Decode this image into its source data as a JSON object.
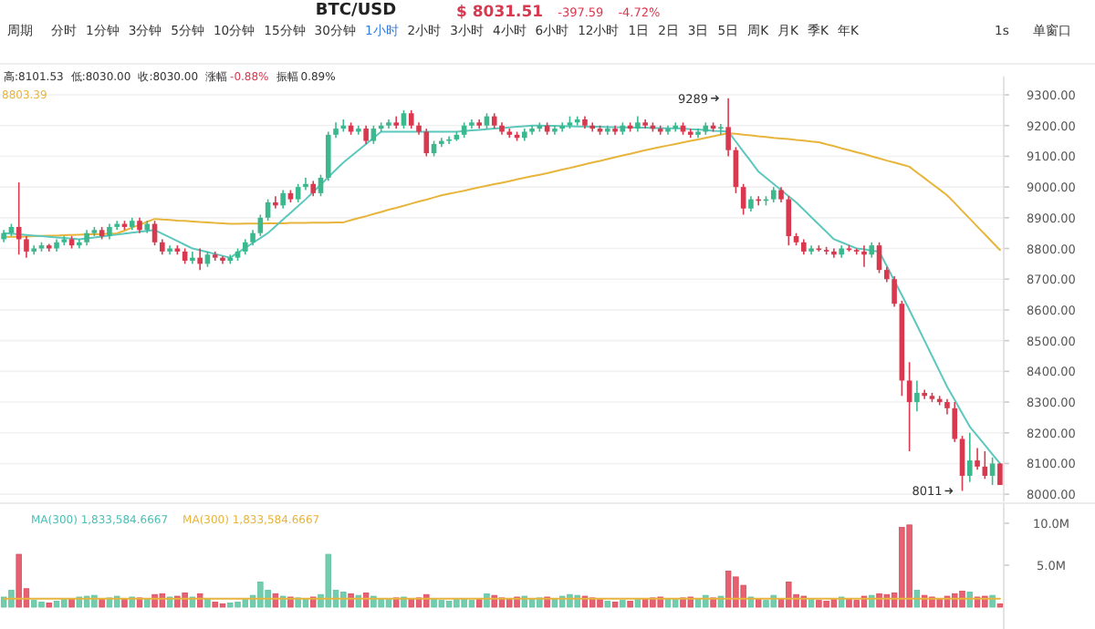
{
  "chart_data": [
    {
      "type": "candlestick",
      "title": "BTC/USD",
      "annotations": [
        "周期",
        "分时",
        "1分钟",
        "3分钟",
        "5分钟",
        "10分钟",
        "15分钟",
        "30分钟",
        "1小时",
        "2小时",
        "3小时",
        "4小时",
        "6小时",
        "12小时",
        "1日",
        "2日",
        "3日",
        "5日",
        "周K",
        "月K",
        "季K",
        "年K",
        "1s",
        "单窗口",
        "$ 8031.51",
        "-397.59",
        "-4.72%",
        "高:8101.53",
        "低:8030.00",
        "收:8030.00",
        "涨幅",
        "-0.88%",
        "振幅",
        "0.89%",
        "8803.39",
        "9289",
        "8011"
      ],
      "categories": [
        null,
        null,
        null,
        null,
        null,
        null,
        null,
        null,
        null,
        null,
        null,
        null,
        null,
        null,
        null,
        null,
        null,
        null,
        null,
        null,
        null,
        null,
        null,
        null,
        null,
        null,
        null,
        null,
        null,
        null,
        null,
        null,
        null,
        null,
        null,
        null,
        null,
        null,
        null,
        null,
        null,
        null,
        null,
        null,
        null,
        null,
        null,
        null,
        null,
        null,
        null,
        null,
        null,
        null,
        null,
        null,
        null,
        null,
        null,
        null,
        null,
        null,
        null,
        null,
        null,
        null,
        null,
        null,
        null,
        null,
        null,
        null,
        null,
        null,
        null,
        null,
        null,
        null,
        null,
        null,
        null,
        null,
        null,
        null,
        null,
        null,
        null,
        null,
        null,
        null,
        null,
        null,
        null,
        null,
        null,
        null,
        null,
        null,
        null,
        null,
        null,
        null,
        null,
        null,
        null,
        null,
        null,
        null,
        null,
        null,
        null,
        null,
        null,
        null,
        null,
        null,
        null,
        null,
        null,
        null,
        null,
        null,
        null,
        null,
        null,
        null,
        null,
        null,
        null,
        null,
        null,
        null,
        null
      ],
      "ohlc": [
        [
          8830,
          8860,
          8820,
          8850
        ],
        [
          8850,
          8880,
          8840,
          8870
        ],
        [
          8870,
          9015,
          8780,
          8830
        ],
        [
          8830,
          8840,
          8770,
          8790
        ],
        [
          8790,
          8810,
          8780,
          8800
        ],
        [
          8800,
          8820,
          8790,
          8810
        ],
        [
          8810,
          8815,
          8790,
          8800
        ],
        [
          8800,
          8830,
          8790,
          8820
        ],
        [
          8820,
          8840,
          8810,
          8830
        ],
        [
          8830,
          8840,
          8800,
          8810
        ],
        [
          8810,
          8830,
          8800,
          8820
        ],
        [
          8820,
          8860,
          8810,
          8850
        ],
        [
          8850,
          8870,
          8840,
          8860
        ],
        [
          8860,
          8870,
          8830,
          8840
        ],
        [
          8840,
          8880,
          8830,
          8870
        ],
        [
          8870,
          8890,
          8860,
          8880
        ],
        [
          8880,
          8890,
          8860,
          8870
        ],
        [
          8870,
          8900,
          8860,
          8890
        ],
        [
          8890,
          8900,
          8850,
          8860
        ],
        [
          8860,
          8890,
          8850,
          8880
        ],
        [
          8880,
          8890,
          8810,
          8820
        ],
        [
          8820,
          8830,
          8780,
          8790
        ],
        [
          8790,
          8810,
          8780,
          8800
        ],
        [
          8800,
          8810,
          8780,
          8790
        ],
        [
          8790,
          8800,
          8750,
          8760
        ],
        [
          8760,
          8790,
          8750,
          8770
        ],
        [
          8770,
          8800,
          8730,
          8750
        ],
        [
          8750,
          8790,
          8740,
          8780
        ],
        [
          8780,
          8790,
          8760,
          8770
        ],
        [
          8770,
          8775,
          8750,
          8760
        ],
        [
          8760,
          8780,
          8750,
          8770
        ],
        [
          8770,
          8800,
          8760,
          8790
        ],
        [
          8790,
          8830,
          8780,
          8820
        ],
        [
          8820,
          8860,
          8810,
          8850
        ],
        [
          8850,
          8910,
          8840,
          8900
        ],
        [
          8900,
          8960,
          8890,
          8950
        ],
        [
          8950,
          8970,
          8930,
          8940
        ],
        [
          8940,
          8990,
          8930,
          8980
        ],
        [
          8980,
          8990,
          8950,
          8960
        ],
        [
          8960,
          9010,
          8950,
          9000
        ],
        [
          9000,
          9030,
          8990,
          9010
        ],
        [
          9010,
          9020,
          8970,
          8980
        ],
        [
          8980,
          9040,
          8970,
          9030
        ],
        [
          9030,
          9180,
          9020,
          9170
        ],
        [
          9170,
          9210,
          9160,
          9190
        ],
        [
          9190,
          9220,
          9180,
          9200
        ],
        [
          9200,
          9210,
          9170,
          9180
        ],
        [
          9180,
          9200,
          9170,
          9190
        ],
        [
          9190,
          9200,
          9140,
          9150
        ],
        [
          9150,
          9200,
          9140,
          9190
        ],
        [
          9190,
          9210,
          9180,
          9200
        ],
        [
          9200,
          9220,
          9190,
          9210
        ],
        [
          9210,
          9230,
          9190,
          9200
        ],
        [
          9200,
          9250,
          9190,
          9240
        ],
        [
          9240,
          9250,
          9190,
          9200
        ],
        [
          9200,
          9210,
          9170,
          9180
        ],
        [
          9180,
          9190,
          9100,
          9110
        ],
        [
          9110,
          9150,
          9100,
          9140
        ],
        [
          9140,
          9160,
          9130,
          9150
        ],
        [
          9150,
          9165,
          9140,
          9155
        ],
        [
          9155,
          9180,
          9150,
          9170
        ],
        [
          9170,
          9210,
          9160,
          9200
        ],
        [
          9200,
          9220,
          9190,
          9210
        ],
        [
          9210,
          9220,
          9190,
          9200
        ],
        [
          9200,
          9240,
          9190,
          9230
        ],
        [
          9230,
          9240,
          9190,
          9200
        ],
        [
          9200,
          9210,
          9170,
          9180
        ],
        [
          9180,
          9190,
          9160,
          9170
        ],
        [
          9170,
          9180,
          9150,
          9160
        ],
        [
          9160,
          9190,
          9150,
          9180
        ],
        [
          9180,
          9200,
          9170,
          9190
        ],
        [
          9190,
          9210,
          9180,
          9200
        ],
        [
          9200,
          9210,
          9170,
          9180
        ],
        [
          9180,
          9200,
          9170,
          9190
        ],
        [
          9190,
          9210,
          9180,
          9200
        ],
        [
          9200,
          9230,
          9190,
          9210
        ],
        [
          9210,
          9230,
          9200,
          9220
        ],
        [
          9220,
          9230,
          9190,
          9200
        ],
        [
          9200,
          9210,
          9180,
          9190
        ],
        [
          9190,
          9200,
          9170,
          9180
        ],
        [
          9180,
          9200,
          9170,
          9190
        ],
        [
          9190,
          9200,
          9170,
          9180
        ],
        [
          9180,
          9210,
          9170,
          9200
        ],
        [
          9200,
          9210,
          9180,
          9190
        ],
        [
          9190,
          9230,
          9180,
          9210
        ],
        [
          9210,
          9220,
          9190,
          9200
        ],
        [
          9200,
          9210,
          9180,
          9190
        ],
        [
          9190,
          9200,
          9170,
          9180
        ],
        [
          9180,
          9200,
          9170,
          9190
        ],
        [
          9190,
          9210,
          9180,
          9200
        ],
        [
          9200,
          9210,
          9170,
          9180
        ],
        [
          9180,
          9190,
          9160,
          9170
        ],
        [
          9170,
          9190,
          9160,
          9180
        ],
        [
          9180,
          9210,
          9170,
          9200
        ],
        [
          9200,
          9210,
          9180,
          9190
        ],
        [
          9190,
          9205,
          9170,
          9195
        ],
        [
          9195,
          9289,
          9100,
          9120
        ],
        [
          9120,
          9130,
          8980,
          9000
        ],
        [
          9000,
          9010,
          8910,
          8930
        ],
        [
          8930,
          8970,
          8920,
          8960
        ],
        [
          8960,
          8970,
          8940,
          8955
        ],
        [
          8955,
          8970,
          8940,
          8960
        ],
        [
          8960,
          9000,
          8950,
          8990
        ],
        [
          8990,
          9000,
          8950,
          8960
        ],
        [
          8960,
          8970,
          8810,
          8840
        ],
        [
          8840,
          8850,
          8810,
          8820
        ],
        [
          8820,
          8830,
          8780,
          8790
        ],
        [
          8790,
          8810,
          8780,
          8800
        ],
        [
          8800,
          8810,
          8790,
          8795
        ],
        [
          8795,
          8805,
          8780,
          8790
        ],
        [
          8790,
          8800,
          8770,
          8780
        ],
        [
          8780,
          8810,
          8770,
          8800
        ],
        [
          8800,
          8810,
          8790,
          8795
        ],
        [
          8795,
          8800,
          8780,
          8790
        ],
        [
          8790,
          8810,
          8740,
          8780
        ],
        [
          8780,
          8820,
          8770,
          8810
        ],
        [
          8810,
          8820,
          8720,
          8730
        ],
        [
          8730,
          8740,
          8690,
          8700
        ],
        [
          8700,
          8710,
          8610,
          8620
        ],
        [
          8620,
          8630,
          8320,
          8370
        ],
        [
          8370,
          8430,
          8140,
          8300
        ],
        [
          8300,
          8370,
          8270,
          8330
        ],
        [
          8330,
          8340,
          8310,
          8320
        ],
        [
          8320,
          8330,
          8300,
          8310
        ],
        [
          8310,
          8320,
          8290,
          8300
        ],
        [
          8300,
          8310,
          8260,
          8280
        ],
        [
          8280,
          8300,
          8170,
          8180
        ],
        [
          8180,
          8190,
          8011,
          8060
        ],
        [
          8060,
          8200,
          8040,
          8110
        ],
        [
          8110,
          8150,
          8080,
          8090
        ],
        [
          8090,
          8140,
          8050,
          8060
        ],
        [
          8060,
          8120,
          8030,
          8100
        ],
        [
          8100,
          8101.53,
          8030,
          8030
        ]
      ],
      "series": [
        {
          "type": "line",
          "color": "#e8b53c",
          "values": [
            8837,
            8838,
            8838,
            8839,
            8840,
            8841,
            8842,
            8842,
            8843,
            8844,
            8845,
            8846,
            8846,
            8847,
            8848,
            8849,
            8858,
            8868,
            8877,
            8887,
            8896,
            8894,
            8893,
            8891,
            8890,
            8888,
            8886,
            8885,
            8883,
            8882,
            8880,
            8880,
            8881,
            8881,
            8881,
            8882,
            8882,
            8882,
            8883,
            8883,
            8883,
            8884,
            8884,
            8884,
            8885,
            8885,
            8892,
            8899,
            8905,
            8912,
            8919,
            8926,
            8932,
            8939,
            8946,
            8953,
            8959,
            8966,
            8973,
            8978,
            8983,
            8988,
            8994,
            8999,
            9004,
            9009,
            9014,
            9019,
            9025,
            9030,
            9035,
            9040,
            9045,
            9051,
            9057,
            9062,
            9068,
            9074,
            9080,
            9085,
            9091,
            9097,
            9103,
            9108,
            9114,
            9120,
            9125,
            9130,
            9135,
            9140,
            9145,
            9150,
            9155,
            9160,
            9165,
            9170,
            9175,
            9173,
            9170,
            9168,
            9165,
            9163,
            9160,
            9158,
            9156,
            9153,
            9151,
            9148,
            9146,
            9139,
            9133,
            9126,
            9120,
            9113,
            9107,
            9100,
            9093,
            9086,
            9080,
            9073,
            9066,
            9047,
            9029,
            9010,
            8992,
            8973,
            8948,
            8922,
            8897,
            8871,
            8846,
            8820,
            8795
          ]
        },
        {
          "type": "line",
          "color": "#5cc8bd",
          "values": [
            8850,
            8848,
            8846,
            8844,
            8842,
            8840,
            8838,
            8836,
            8834,
            8832,
            8830,
            8833,
            8836,
            8839,
            8842,
            8845,
            8848,
            8851,
            8854,
            8857,
            8860,
            8848,
            8836,
            8824,
            8812,
            8800,
            8794,
            8788,
            8782,
            8776,
            8770,
            8786,
            8802,
            8818,
            8834,
            8850,
            8872,
            8894,
            8916,
            8938,
            8960,
            8984,
            9008,
            9032,
            9056,
            9080,
            9100,
            9120,
            9140,
            9160,
            9180,
            9180,
            9180,
            9180,
            9180,
            9180,
            9180,
            9180,
            9180,
            9180,
            9180,
            9182,
            9184,
            9186,
            9188,
            9190,
            9192,
            9194,
            9196,
            9198,
            9200,
            9200,
            9199,
            9199,
            9198,
            9198,
            9197,
            9197,
            9196,
            9196,
            9195,
            9195,
            9194,
            9194,
            9193,
            9193,
            9192,
            9192,
            9191,
            9191,
            9190,
            9188,
            9187,
            9185,
            9183,
            9182,
            9180,
            9148,
            9115,
            9083,
            9050,
            9030,
            9010,
            8990,
            8970,
            8950,
            8926,
            8902,
            8878,
            8854,
            8830,
            8820,
            8810,
            8800,
            8797,
            8793,
            8790,
            8743,
            8695,
            8648,
            8600,
            8550,
            8500,
            8450,
            8400,
            8350,
            8307,
            8263,
            8220,
            8190,
            8160,
            8130,
            8100
          ]
        }
      ],
      "ylim": [
        7975,
        9360
      ],
      "yticks": [
        {
          "value": 8000,
          "label": "8000.00"
        },
        {
          "value": 8100,
          "label": "8100.00"
        },
        {
          "value": 8200,
          "label": "8200.00"
        },
        {
          "value": 8300,
          "label": "8300.00"
        },
        {
          "value": 8400,
          "label": "8400.00"
        },
        {
          "value": 8500,
          "label": "8500.00"
        },
        {
          "value": 8600,
          "label": "8600.00"
        },
        {
          "value": 8700,
          "label": "8700.00"
        },
        {
          "value": 8800,
          "label": "8800.00"
        },
        {
          "value": 8900,
          "label": "8900.00"
        },
        {
          "value": 9000,
          "label": "9000.00"
        },
        {
          "value": 9100,
          "label": "9100.00"
        },
        {
          "value": 9200,
          "label": "9200.00"
        },
        {
          "value": 9300,
          "label": "9300.00"
        }
      ],
      "grid": "y"
    },
    {
      "type": "bar",
      "annotations": [
        "MA(300) 1,833,584.6667",
        "MA(300) 1,833,584.6667"
      ],
      "categories": [
        null,
        null,
        null,
        null,
        null,
        null,
        null,
        null,
        null,
        null,
        null,
        null,
        null,
        null,
        null,
        null,
        null,
        null,
        null,
        null,
        null,
        null,
        null,
        null,
        null,
        null,
        null,
        null,
        null,
        null,
        null,
        null,
        null,
        null,
        null,
        null,
        null,
        null,
        null,
        null,
        null,
        null,
        null,
        null,
        null,
        null,
        null,
        null,
        null,
        null,
        null,
        null,
        null,
        null,
        null,
        null,
        null,
        null,
        null,
        null,
        null,
        null,
        null,
        null,
        null,
        null,
        null,
        null,
        null,
        null,
        null,
        null,
        null,
        null,
        null,
        null,
        null,
        null,
        null,
        null,
        null,
        null,
        null,
        null,
        null,
        null,
        null,
        null,
        null,
        null,
        null,
        null,
        null,
        null,
        null,
        null,
        null,
        null,
        null,
        null,
        null,
        null,
        null,
        null,
        null,
        null,
        null,
        null,
        null,
        null,
        null,
        null,
        null,
        null,
        null,
        null,
        null,
        null,
        null,
        null,
        null,
        null,
        null,
        null,
        null,
        null,
        null,
        null,
        null,
        null,
        null,
        null,
        null
      ],
      "series": [
        {
          "type": "bar",
          "values": [
            1.2,
            2.0,
            6.3,
            2.2,
            0.8,
            0.6,
            0.5,
            0.7,
            0.9,
            1.0,
            1.2,
            1.3,
            1.4,
            1.0,
            1.1,
            1.3,
            1.0,
            1.2,
            1.1,
            1.0,
            1.5,
            1.6,
            1.2,
            1.3,
            1.7,
            1.2,
            1.6,
            1.0,
            0.6,
            0.4,
            0.5,
            0.6,
            0.9,
            1.4,
            3.0,
            2.0,
            1.6,
            1.3,
            1.2,
            1.1,
            1.0,
            1.2,
            1.5,
            6.3,
            2.0,
            1.8,
            1.6,
            1.4,
            1.7,
            1.3,
            1.0,
            0.9,
            1.1,
            1.2,
            1.0,
            1.1,
            1.5,
            1.0,
            0.8,
            0.7,
            0.9,
            1.0,
            0.8,
            0.9,
            1.6,
            1.4,
            1.1,
            1.0,
            1.2,
            1.3,
            1.0,
            1.1,
            1.2,
            1.0,
            1.3,
            1.5,
            1.4,
            1.3,
            1.1,
            0.9,
            0.7,
            0.6,
            0.8,
            0.7,
            0.9,
            1.0,
            1.1,
            1.2,
            1.0,
            0.9,
            1.1,
            1.2,
            1.0,
            1.4,
            1.1,
            1.3,
            4.3,
            3.6,
            2.6,
            1.2,
            1.0,
            0.8,
            1.4,
            1.0,
            3.0,
            1.5,
            1.3,
            0.9,
            0.8,
            0.7,
            0.9,
            1.2,
            1.0,
            0.8,
            1.3,
            1.4,
            1.6,
            1.5,
            1.7,
            9.5,
            9.8,
            2.0,
            1.4,
            1.2,
            1.0,
            1.3,
            1.6,
            1.9,
            1.8,
            1.2,
            1.3,
            1.4,
            0.4
          ],
          "colors": [
            "#5cc3a0",
            "#5cc3a0",
            "#e04759",
            "#e04759",
            "#5cc3a0",
            "#5cc3a0",
            "#e04759",
            "#5cc3a0",
            "#5cc3a0",
            "#e04759",
            "#5cc3a0",
            "#5cc3a0",
            "#5cc3a0",
            "#e04759",
            "#5cc3a0",
            "#5cc3a0",
            "#e04759",
            "#5cc3a0",
            "#e04759",
            "#5cc3a0",
            "#e04759",
            "#e04759",
            "#5cc3a0",
            "#e04759",
            "#e04759",
            "#5cc3a0",
            "#e04759",
            "#5cc3a0",
            "#e04759",
            "#e04759",
            "#5cc3a0",
            "#5cc3a0",
            "#5cc3a0",
            "#5cc3a0",
            "#5cc3a0",
            "#5cc3a0",
            "#e04759",
            "#5cc3a0",
            "#e04759",
            "#5cc3a0",
            "#5cc3a0",
            "#e04759",
            "#5cc3a0",
            "#5cc3a0",
            "#5cc3a0",
            "#5cc3a0",
            "#e04759",
            "#5cc3a0",
            "#e04759",
            "#5cc3a0",
            "#5cc3a0",
            "#5cc3a0",
            "#e04759",
            "#5cc3a0",
            "#e04759",
            "#e04759",
            "#e04759",
            "#5cc3a0",
            "#5cc3a0",
            "#5cc3a0",
            "#5cc3a0",
            "#5cc3a0",
            "#5cc3a0",
            "#e04759",
            "#5cc3a0",
            "#e04759",
            "#e04759",
            "#e04759",
            "#e04759",
            "#5cc3a0",
            "#5cc3a0",
            "#5cc3a0",
            "#e04759",
            "#5cc3a0",
            "#5cc3a0",
            "#5cc3a0",
            "#5cc3a0",
            "#e04759",
            "#e04759",
            "#e04759",
            "#5cc3a0",
            "#e04759",
            "#5cc3a0",
            "#e04759",
            "#5cc3a0",
            "#e04759",
            "#e04759",
            "#e04759",
            "#5cc3a0",
            "#5cc3a0",
            "#e04759",
            "#e04759",
            "#5cc3a0",
            "#5cc3a0",
            "#e04759",
            "#5cc3a0",
            "#e04759",
            "#e04759",
            "#e04759",
            "#5cc3a0",
            "#e04759",
            "#5cc3a0",
            "#5cc3a0",
            "#e04759",
            "#e04759",
            "#e04759",
            "#e04759",
            "#5cc3a0",
            "#e04759",
            "#e04759",
            "#e04759",
            "#5cc3a0",
            "#e04759",
            "#e04759",
            "#e04759",
            "#5cc3a0",
            "#e04759",
            "#e04759",
            "#e04759",
            "#e04759",
            "#e04759",
            "#5cc3a0",
            "#e04759",
            "#e04759",
            "#e04759",
            "#e04759",
            "#e04759",
            "#e04759",
            "#5cc3a0",
            "#e04759",
            "#e04759",
            "#5cc3a0",
            "#e04759"
          ]
        },
        {
          "type": "line",
          "color": "#e8b53c",
          "values": [
            1.0,
            1.0,
            1.0,
            1.0,
            1.0,
            1.0,
            1.0,
            1.0,
            1.0,
            1.0,
            1.0,
            1.0,
            1.0,
            1.0,
            1.0,
            1.0,
            1.0,
            1.0,
            1.0,
            1.0,
            1.0,
            1.0,
            1.0,
            1.0,
            1.0,
            1.0,
            1.0,
            1.0,
            1.0,
            1.0,
            1.0,
            1.0,
            1.0,
            1.0,
            1.0,
            1.0,
            1.0,
            1.0,
            1.0,
            1.0,
            1.0,
            1.0,
            1.0,
            1.0,
            1.0,
            1.0,
            1.0,
            1.0,
            1.0,
            1.0,
            1.0,
            1.0,
            1.0,
            1.0,
            1.0,
            1.0,
            1.0,
            1.0,
            1.0,
            1.0,
            1.0,
            1.0,
            1.0,
            1.0,
            1.0,
            1.0,
            1.0,
            1.0,
            1.0,
            1.0,
            1.0,
            1.0,
            1.0,
            1.0,
            1.0,
            1.0,
            1.0,
            1.0,
            1.0,
            1.0,
            1.0,
            1.0,
            1.0,
            1.0,
            1.0,
            1.0,
            1.0,
            1.0,
            1.0,
            1.0,
            1.0,
            1.0,
            1.0,
            1.0,
            1.0,
            1.0,
            1.0,
            1.0,
            1.0,
            1.0,
            1.0,
            1.0,
            1.0,
            1.0,
            1.0,
            1.0,
            1.0,
            1.0,
            1.0,
            1.0,
            1.0,
            1.0,
            1.0,
            1.0,
            1.0,
            1.0,
            1.0,
            1.0,
            1.0,
            1.0,
            1.0,
            1.0,
            1.0,
            1.0,
            1.0,
            1.0,
            1.0,
            1.0,
            1.0,
            1.0,
            1.0,
            1.0,
            1.0
          ]
        }
      ],
      "ylim": [
        0,
        12
      ],
      "yticks": [
        {
          "value": 5,
          "label": "5.0M"
        },
        {
          "value": 10,
          "label": "10.0M"
        }
      ]
    }
  ]
}
